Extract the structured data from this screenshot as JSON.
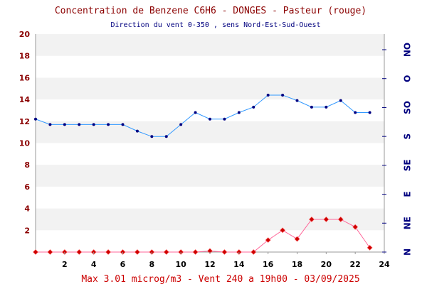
{
  "chart_data": {
    "type": "line",
    "title": "Concentration de Benzene C6H6  -   DONGES - Pasteur (rouge)",
    "subtitle": "Direction du vent 0-350 , sens Nord-Est-Sud-Ouest",
    "footer": "Max 3.01 microg/m3 - Vent 240  a 19h00 - 03/09/2025",
    "xlim": [
      0,
      24
    ],
    "ylim": [
      0,
      20
    ],
    "x_ticks": [
      "2",
      "4",
      "6",
      "8",
      "10",
      "12",
      "14",
      "16",
      "18",
      "20",
      "22",
      "24"
    ],
    "y_ticks": [
      "2",
      "4",
      "6",
      "8",
      "10",
      "12",
      "14",
      "16",
      "18",
      "20"
    ],
    "right_axis_labels": [
      "N",
      "NE",
      "E",
      "SE",
      "S",
      "SO",
      "O",
      "NO"
    ],
    "grid": "alternating horizontal bands",
    "x": [
      0,
      1,
      2,
      3,
      4,
      5,
      6,
      7,
      8,
      9,
      10,
      11,
      12,
      13,
      14,
      15,
      16,
      17,
      18,
      19,
      20,
      21,
      22,
      23
    ],
    "series": [
      {
        "color": "#3399ff",
        "marker_color": "#000080",
        "values": [
          12.2,
          11.7,
          11.7,
          11.7,
          11.7,
          11.7,
          11.7,
          11.1,
          10.6,
          10.6,
          11.7,
          12.8,
          12.2,
          12.2,
          12.8,
          13.3,
          14.4,
          14.4,
          13.9,
          13.3,
          13.3,
          13.9,
          12.8,
          12.8
        ]
      },
      {
        "color": "#ff6699",
        "marker_color": "#cc0000",
        "values": [
          0,
          0,
          0,
          0,
          0,
          0,
          0,
          0,
          0,
          0,
          0,
          0,
          0.1,
          0,
          0,
          0,
          1.1,
          2.0,
          1.2,
          3.0,
          3.0,
          3.0,
          2.3,
          0.4
        ]
      }
    ]
  }
}
